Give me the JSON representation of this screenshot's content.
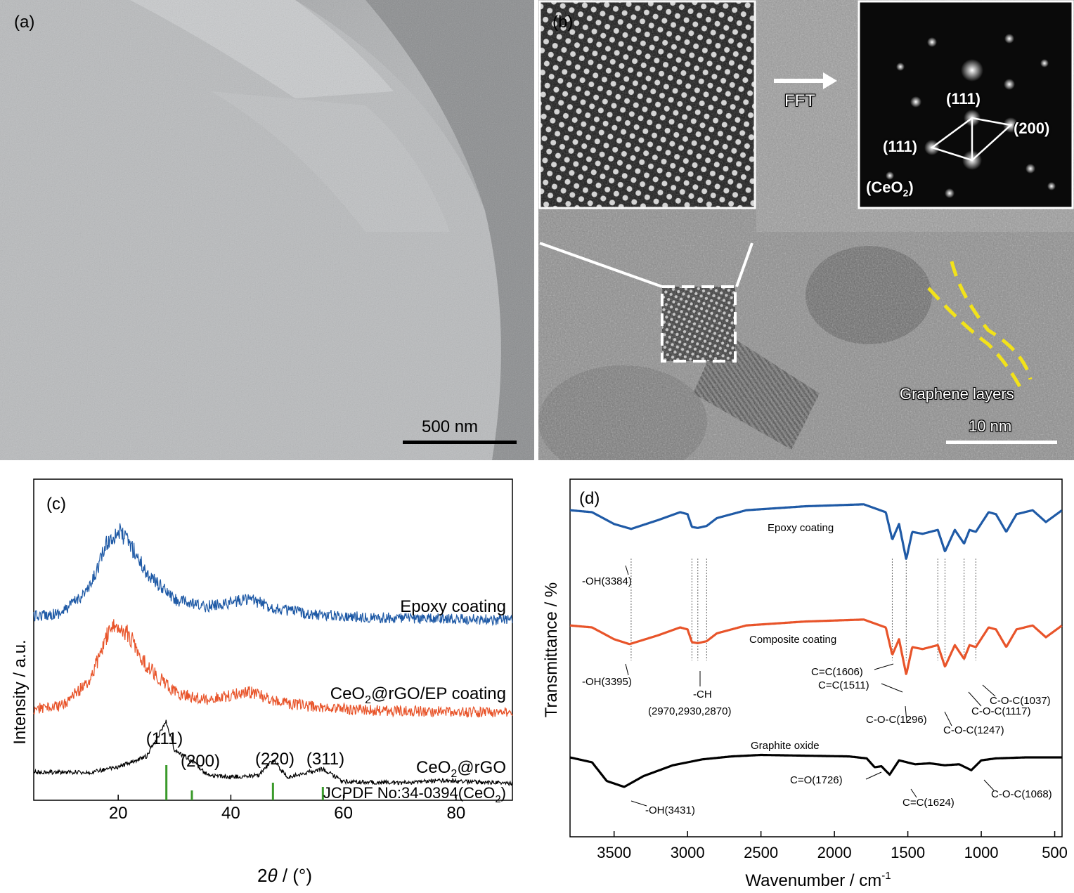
{
  "panel_a": {
    "label": "(a)",
    "scale_bar": "500 nm"
  },
  "panel_b": {
    "label": "(b)",
    "fft_label": "FFT",
    "fft_spots": [
      "(111)",
      "(200)",
      "(111)"
    ],
    "phase_prefix": "(CeO",
    "phase_sub": "2",
    "phase_suffix": ")",
    "graphene_label": "Graphene layers",
    "scale_bar": "10 nm"
  },
  "panel_c": {
    "label": "(c)",
    "ylabel": "Intensity / a.u.",
    "xlabel_prefix": "2",
    "xlabel_theta": "θ",
    "xlabel_suffix": " / (°)",
    "xticks": [
      "20",
      "40",
      "60",
      "80"
    ],
    "series_labels": {
      "epoxy": "Epoxy coating",
      "composite_pre": "CeO",
      "composite_sub": "2",
      "composite_post": "@rGO/EP coating",
      "ceo2_pre": "CeO",
      "ceo2_sub": "2",
      "ceo2_post": "@rGO"
    },
    "peak_labels": [
      "(111)",
      "(200)",
      "(220)",
      "(311)"
    ],
    "jcpdf_pre": "JCPDF No:34-0394(CeO",
    "jcpdf_sub": "2",
    "jcpdf_post": ")"
  },
  "panel_d": {
    "label": "(d)",
    "ylabel": "Transmittance / %",
    "xlabel_pre": "Wavenumber / cm",
    "xlabel_sup": "-1",
    "xticks": [
      "3500",
      "3000",
      "2500",
      "2000",
      "1500",
      "1000",
      "500"
    ],
    "series_labels": [
      "Epoxy coating",
      "Composite coating",
      "Graphite oxide"
    ],
    "annotations": {
      "oh_epoxy": "-OH(3384)",
      "oh_comp": "-OH(3395)",
      "ch": "-CH",
      "ch_vals": "(2970,2930,2870)",
      "cc1606": "C=C(1606)",
      "cc1511": "C=C(1511)",
      "coc1296": "C-O-C(1296)",
      "coc1247": "C-O-C(1247)",
      "coc1117": "C-O-C(1117)",
      "coc1037": "C-O-C(1037)",
      "oh_go": "-OH(3431)",
      "co1726": "C=O(1726)",
      "cc1624": "C=C(1624)",
      "coc1068": "C-O-C(1068)"
    }
  },
  "chart_data": [
    {
      "type": "line",
      "title": "(c)",
      "xlabel": "2θ / (°)",
      "ylabel": "Intensity / a.u.",
      "xlim": [
        5,
        90
      ],
      "series": [
        {
          "name": "Epoxy coating",
          "color": "#1f5aa6",
          "x": [
            5,
            10,
            15,
            18,
            20,
            22,
            25,
            30,
            35,
            40,
            43,
            48,
            55,
            65,
            75,
            90
          ],
          "y": [
            0.82,
            0.88,
            1.3,
            2.05,
            2.25,
            2.05,
            1.55,
            1.1,
            0.98,
            1.05,
            1.12,
            0.95,
            0.85,
            0.8,
            0.78,
            0.76
          ]
        },
        {
          "name": "CeO2@rGO/EP coating",
          "color": "#e8542a",
          "x": [
            5,
            10,
            15,
            18,
            20,
            22,
            25,
            30,
            35,
            40,
            43,
            48,
            55,
            65,
            75,
            90
          ],
          "y": [
            0.82,
            0.88,
            1.3,
            2.05,
            2.25,
            2.05,
            1.55,
            1.1,
            0.98,
            1.05,
            1.12,
            0.95,
            0.85,
            0.8,
            0.78,
            0.76
          ]
        },
        {
          "name": "CeO2@rGO",
          "color": "#000000",
          "x": [
            5,
            15,
            20,
            25,
            27,
            28.5,
            30,
            33,
            36,
            40,
            45,
            47.5,
            50,
            56.3,
            60,
            70,
            77,
            90
          ],
          "y": [
            0.2,
            0.2,
            0.28,
            0.45,
            0.75,
            1.0,
            0.55,
            0.38,
            0.15,
            0.12,
            0.15,
            0.4,
            0.12,
            0.25,
            0.05,
            0.03,
            0.07,
            0.02
          ]
        }
      ],
      "reference_sticks": {
        "name": "JCPDF No:34-0394(CeO2)",
        "color": "#3a9a2a",
        "x": [
          28.55,
          33.08,
          47.48,
          56.34
        ],
        "rel_intensity": [
          100,
          28,
          50,
          38
        ]
      }
    },
    {
      "type": "line",
      "title": "(d)",
      "xlabel": "Wavenumber / cm-1",
      "ylabel": "Transmittance / %",
      "xlim": [
        3800,
        450
      ],
      "series": [
        {
          "name": "Epoxy coating",
          "color": "#1f5aa6",
          "x": [
            3800,
            3650,
            3500,
            3384,
            3200,
            3050,
            3000,
            2970,
            2930,
            2870,
            2800,
            2600,
            2400,
            2200,
            2000,
            1800,
            1650,
            1606,
            1560,
            1511,
            1470,
            1400,
            1296,
            1247,
            1180,
            1117,
            1080,
            1037,
            950,
            900,
            830,
            760,
            650,
            560,
            450
          ],
          "y": [
            0.92,
            0.9,
            0.78,
            0.73,
            0.82,
            0.9,
            0.88,
            0.75,
            0.74,
            0.76,
            0.84,
            0.92,
            0.94,
            0.96,
            0.97,
            0.98,
            0.9,
            0.62,
            0.78,
            0.42,
            0.7,
            0.68,
            0.72,
            0.5,
            0.72,
            0.58,
            0.72,
            0.7,
            0.9,
            0.88,
            0.7,
            0.88,
            0.92,
            0.8,
            0.92
          ]
        },
        {
          "name": "Composite coating",
          "color": "#e8542a",
          "x": [
            3800,
            3650,
            3500,
            3395,
            3200,
            3050,
            3000,
            2970,
            2930,
            2870,
            2800,
            2600,
            2400,
            2200,
            2000,
            1800,
            1650,
            1606,
            1560,
            1511,
            1470,
            1400,
            1296,
            1247,
            1180,
            1117,
            1080,
            1037,
            950,
            900,
            830,
            760,
            650,
            560,
            450
          ],
          "y": [
            0.92,
            0.9,
            0.78,
            0.73,
            0.82,
            0.9,
            0.88,
            0.75,
            0.74,
            0.76,
            0.84,
            0.92,
            0.94,
            0.96,
            0.97,
            0.98,
            0.9,
            0.62,
            0.78,
            0.42,
            0.7,
            0.68,
            0.72,
            0.5,
            0.72,
            0.58,
            0.72,
            0.7,
            0.9,
            0.88,
            0.7,
            0.88,
            0.92,
            0.8,
            0.92
          ]
        },
        {
          "name": "Graphite oxide",
          "color": "#000000",
          "x": [
            3800,
            3650,
            3550,
            3431,
            3300,
            3100,
            2900,
            2700,
            2500,
            2300,
            2100,
            1900,
            1780,
            1726,
            1680,
            1624,
            1560,
            1450,
            1350,
            1250,
            1150,
            1068,
            1000,
            900,
            700,
            450
          ],
          "y": [
            0.9,
            0.8,
            0.42,
            0.3,
            0.52,
            0.74,
            0.86,
            0.92,
            0.95,
            0.94,
            0.93,
            0.92,
            0.88,
            0.7,
            0.72,
            0.55,
            0.84,
            0.76,
            0.78,
            0.74,
            0.76,
            0.64,
            0.84,
            0.88,
            0.9,
            0.9
          ]
        }
      ]
    }
  ]
}
